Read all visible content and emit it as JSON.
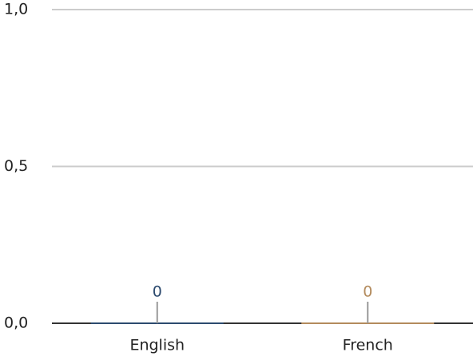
{
  "chart_data": {
    "type": "bar",
    "categories": [
      "English",
      "French"
    ],
    "values": [
      0,
      0
    ],
    "colors": [
      "#2c4a6e",
      "#b38b5d"
    ],
    "ylim": [
      0,
      1
    ],
    "yticks": [
      {
        "value": 0,
        "label": "0,0"
      },
      {
        "value": 0.5,
        "label": "0,5"
      },
      {
        "value": 1,
        "label": "1,0"
      }
    ],
    "grid": true
  }
}
